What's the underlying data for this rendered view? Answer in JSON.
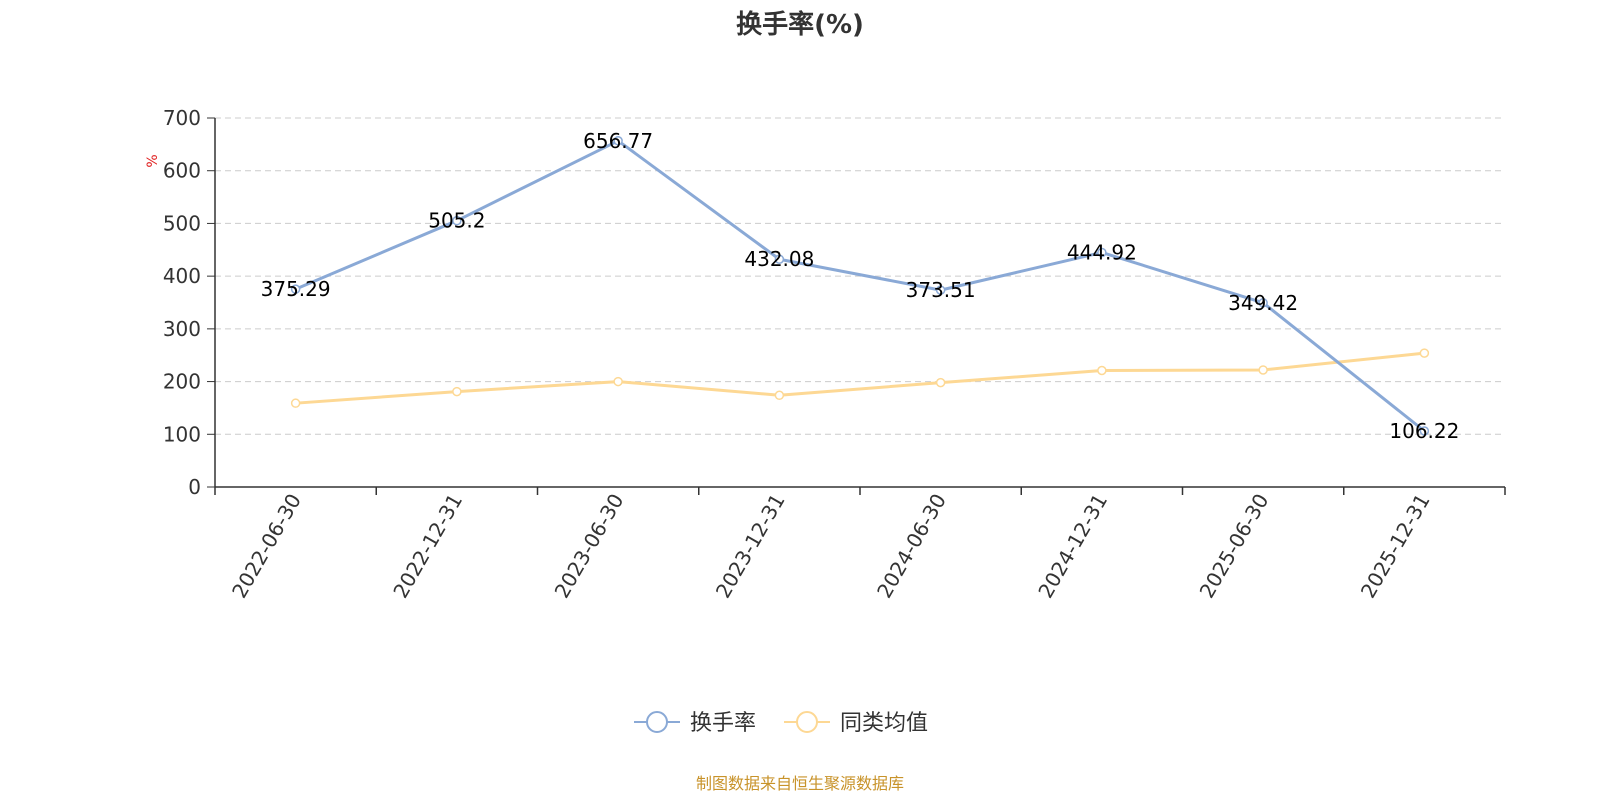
{
  "chart_data": {
    "type": "line",
    "title": "换手率(%)",
    "ylabel": "%",
    "ylim": [
      0,
      700
    ],
    "yticks": [
      0,
      100,
      200,
      300,
      400,
      500,
      600,
      700
    ],
    "grid": true,
    "categories": [
      "2022-06-30",
      "2022-12-31",
      "2023-06-30",
      "2023-12-31",
      "2024-06-30",
      "2024-12-31",
      "2025-06-30",
      "2025-12-31"
    ],
    "series": [
      {
        "name": "换手率",
        "color": "#8aa9d6",
        "values": [
          375.29,
          505.2,
          656.77,
          432.08,
          373.51,
          444.92,
          349.42,
          106.22
        ],
        "labels": [
          "375.29",
          "505.2",
          "656.77",
          "432.08",
          "373.51",
          "444.92",
          "349.42",
          "106.22"
        ],
        "show_labels": true
      },
      {
        "name": "同类均值",
        "color": "#fdd894",
        "values": [
          159,
          181,
          200,
          174,
          198,
          221,
          222,
          254
        ],
        "show_labels": false
      }
    ],
    "legend_position": "bottom-center",
    "source": "制图数据来自恒生聚源数据库",
    "source_color": "#c8932a"
  }
}
